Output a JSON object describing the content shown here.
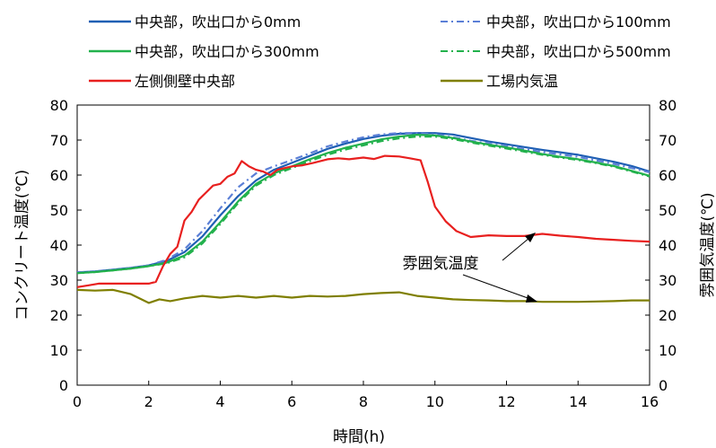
{
  "chart_data": {
    "type": "line",
    "xlabel": "時間(h)",
    "ylabel": "コンクリート温度(℃)",
    "y2label": "雰囲気温度(℃)",
    "xlim": [
      0,
      16
    ],
    "ylim": [
      0,
      80
    ],
    "y2lim": [
      0,
      80
    ],
    "xticks": [
      "0",
      "2",
      "4",
      "6",
      "8",
      "10",
      "12",
      "14",
      "16"
    ],
    "yticks": [
      "0",
      "10",
      "20",
      "30",
      "40",
      "50",
      "60",
      "70",
      "80"
    ],
    "y2ticks": [
      "0",
      "10",
      "20",
      "30",
      "40",
      "50",
      "60",
      "70",
      "80"
    ],
    "grid": false,
    "legend_position": "top",
    "annotation": "雰囲気温度",
    "series": [
      {
        "name": "中央部，吹出口から0mm",
        "color": "#1f5fb4",
        "dash": "solid",
        "x": [
          0,
          0.5,
          1,
          1.5,
          2,
          2.5,
          3,
          3.5,
          4,
          4.5,
          5,
          5.5,
          6,
          6.5,
          7,
          7.5,
          8,
          8.5,
          9,
          9.5,
          10,
          10.5,
          11,
          11.5,
          12,
          12.5,
          13,
          13.5,
          14,
          14.5,
          15,
          15.5,
          16
        ],
        "y": [
          32.2,
          32.5,
          33,
          33.5,
          34.2,
          35.5,
          38,
          42.5,
          48.5,
          54,
          58.5,
          61.5,
          63.5,
          65.5,
          67.5,
          69,
          70.3,
          71.2,
          71.8,
          72,
          72,
          71.6,
          70.6,
          69.6,
          68.8,
          68,
          67.2,
          66.5,
          65.8,
          64.8,
          63.8,
          62.6,
          61
        ]
      },
      {
        "name": "中央部，吹出口から100mm",
        "color": "#5b7fd6",
        "dash": "8,4,2,4",
        "x": [
          0,
          0.5,
          1,
          1.5,
          2,
          2.5,
          3,
          3.5,
          4,
          4.5,
          5,
          5.5,
          6,
          6.5,
          7,
          7.5,
          8,
          8.5,
          9,
          9.5,
          10,
          10.5,
          11,
          11.5,
          12,
          12.5,
          13,
          13.5,
          14,
          14.5,
          15,
          15.5,
          16
        ],
        "y": [
          32.2,
          32.5,
          33,
          33.5,
          34.2,
          35.8,
          38.8,
          44,
          50.5,
          56.5,
          60.5,
          62.5,
          64.3,
          66.2,
          68.2,
          69.6,
          70.8,
          71.6,
          72,
          72,
          71.6,
          70.8,
          69.8,
          69,
          68.2,
          67.4,
          66.6,
          65.9,
          65.2,
          64.2,
          63.2,
          62,
          60.8
        ]
      },
      {
        "name": "中央部，吹出口から300mm",
        "color": "#22b14c",
        "dash": "solid",
        "x": [
          0,
          0.5,
          1,
          1.5,
          2,
          2.5,
          3,
          3.5,
          4,
          4.5,
          5,
          5.5,
          6,
          6.5,
          7,
          7.5,
          8,
          8.5,
          9,
          9.5,
          10,
          10.5,
          11,
          11.5,
          12,
          12.5,
          13,
          13.5,
          14,
          14.5,
          15,
          15.5,
          16
        ],
        "y": [
          32,
          32.3,
          32.8,
          33.3,
          34,
          35,
          37,
          41,
          46.5,
          52.5,
          57.5,
          60.5,
          62.5,
          64.5,
          66.3,
          67.8,
          69,
          70.2,
          71,
          71.5,
          71.3,
          70.6,
          69.6,
          68.7,
          67.9,
          67,
          66,
          65.2,
          64.5,
          63.6,
          62.6,
          61.2,
          59.8
        ]
      },
      {
        "name": "中央部，吹出口から500mm",
        "color": "#22b14c",
        "dash": "8,4,2,4",
        "x": [
          0,
          0.5,
          1,
          1.5,
          2,
          2.5,
          3,
          3.5,
          4,
          4.5,
          5,
          5.5,
          6,
          6.5,
          7,
          7.5,
          8,
          8.5,
          9,
          9.5,
          10,
          10.5,
          11,
          11.5,
          12,
          12.5,
          13,
          13.5,
          14,
          14.5,
          15,
          15.5,
          16
        ],
        "y": [
          32,
          32.3,
          32.8,
          33.3,
          34,
          34.8,
          36.5,
          40.5,
          46,
          52,
          57,
          60,
          62,
          64,
          65.8,
          67.3,
          68.5,
          69.7,
          70.5,
          71,
          71,
          70.3,
          69.3,
          68.4,
          67.6,
          66.7,
          65.8,
          65,
          64.3,
          63.4,
          62.4,
          61,
          59.6
        ]
      },
      {
        "name": "左側側壁中央部",
        "color": "#e8201f",
        "dash": "solid",
        "x": [
          0,
          0.3,
          0.6,
          1,
          1.5,
          2,
          2.2,
          2.4,
          2.6,
          2.8,
          3,
          3.2,
          3.4,
          3.6,
          3.8,
          4,
          4.2,
          4.4,
          4.6,
          4.8,
          5,
          5.2,
          5.4,
          5.6,
          5.8,
          6,
          6.3,
          6.6,
          7,
          7.3,
          7.6,
          8,
          8.3,
          8.6,
          9,
          9.3,
          9.6,
          9.8,
          10,
          10.3,
          10.6,
          11,
          11.5,
          12,
          12.5,
          13,
          13.5,
          14,
          14.5,
          15,
          15.5,
          16
        ],
        "y": [
          28,
          28.5,
          29,
          29,
          29,
          29,
          29.5,
          34,
          37.5,
          39.5,
          47,
          49.5,
          53,
          55,
          57,
          57.5,
          59.5,
          60.5,
          64,
          62.5,
          61.5,
          61,
          60,
          61.5,
          62,
          62.5,
          62.8,
          63.5,
          64.5,
          64.8,
          64.5,
          65,
          64.6,
          65.5,
          65.3,
          64.8,
          64.2,
          58,
          51,
          46.8,
          44,
          42.3,
          42.8,
          42.6,
          42.6,
          43.2,
          42.7,
          42.3,
          41.8,
          41.5,
          41.2,
          41
        ]
      },
      {
        "name": "工場内気温",
        "color": "#7f7f00",
        "dash": "solid",
        "x": [
          0,
          0.5,
          1,
          1.5,
          2,
          2.3,
          2.6,
          3,
          3.5,
          4,
          4.5,
          5,
          5.5,
          6,
          6.5,
          7,
          7.5,
          8,
          8.5,
          9,
          9.5,
          10,
          10.5,
          11,
          11.5,
          12,
          12.5,
          13,
          13.5,
          14,
          14.5,
          15,
          15.5,
          16
        ],
        "y": [
          27.2,
          27,
          27.2,
          26,
          23.5,
          24.5,
          24,
          24.8,
          25.5,
          25,
          25.5,
          25,
          25.5,
          25,
          25.5,
          25.3,
          25.5,
          26,
          26.3,
          26.5,
          25.5,
          25,
          24.5,
          24.3,
          24.2,
          24,
          24,
          23.8,
          23.8,
          23.8,
          23.9,
          24,
          24.2,
          24.2
        ]
      }
    ]
  }
}
